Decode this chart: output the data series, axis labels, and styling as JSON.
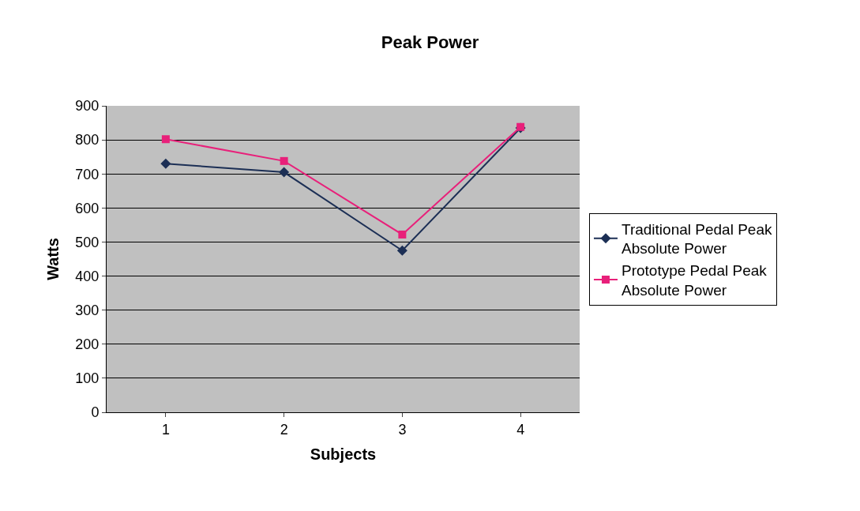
{
  "chart_data": {
    "type": "line",
    "title": "Peak Power",
    "xlabel": "Subjects",
    "ylabel": "Watts",
    "categories": [
      "1",
      "2",
      "3",
      "4"
    ],
    "series": [
      {
        "name": "Traditional Pedal Peak Absolute Power",
        "color": "#1c2f55",
        "marker": "diamond",
        "values": [
          730,
          705,
          475,
          835
        ]
      },
      {
        "name": "Prototype Pedal Peak Absolute Power",
        "color": "#e8207a",
        "marker": "square",
        "values": [
          802,
          738,
          522,
          838
        ]
      }
    ],
    "ylim": [
      0,
      900
    ],
    "yticks": [
      0,
      100,
      200,
      300,
      400,
      500,
      600,
      700,
      800,
      900
    ],
    "grid": "y",
    "legend": "right",
    "line_style": "solid"
  }
}
